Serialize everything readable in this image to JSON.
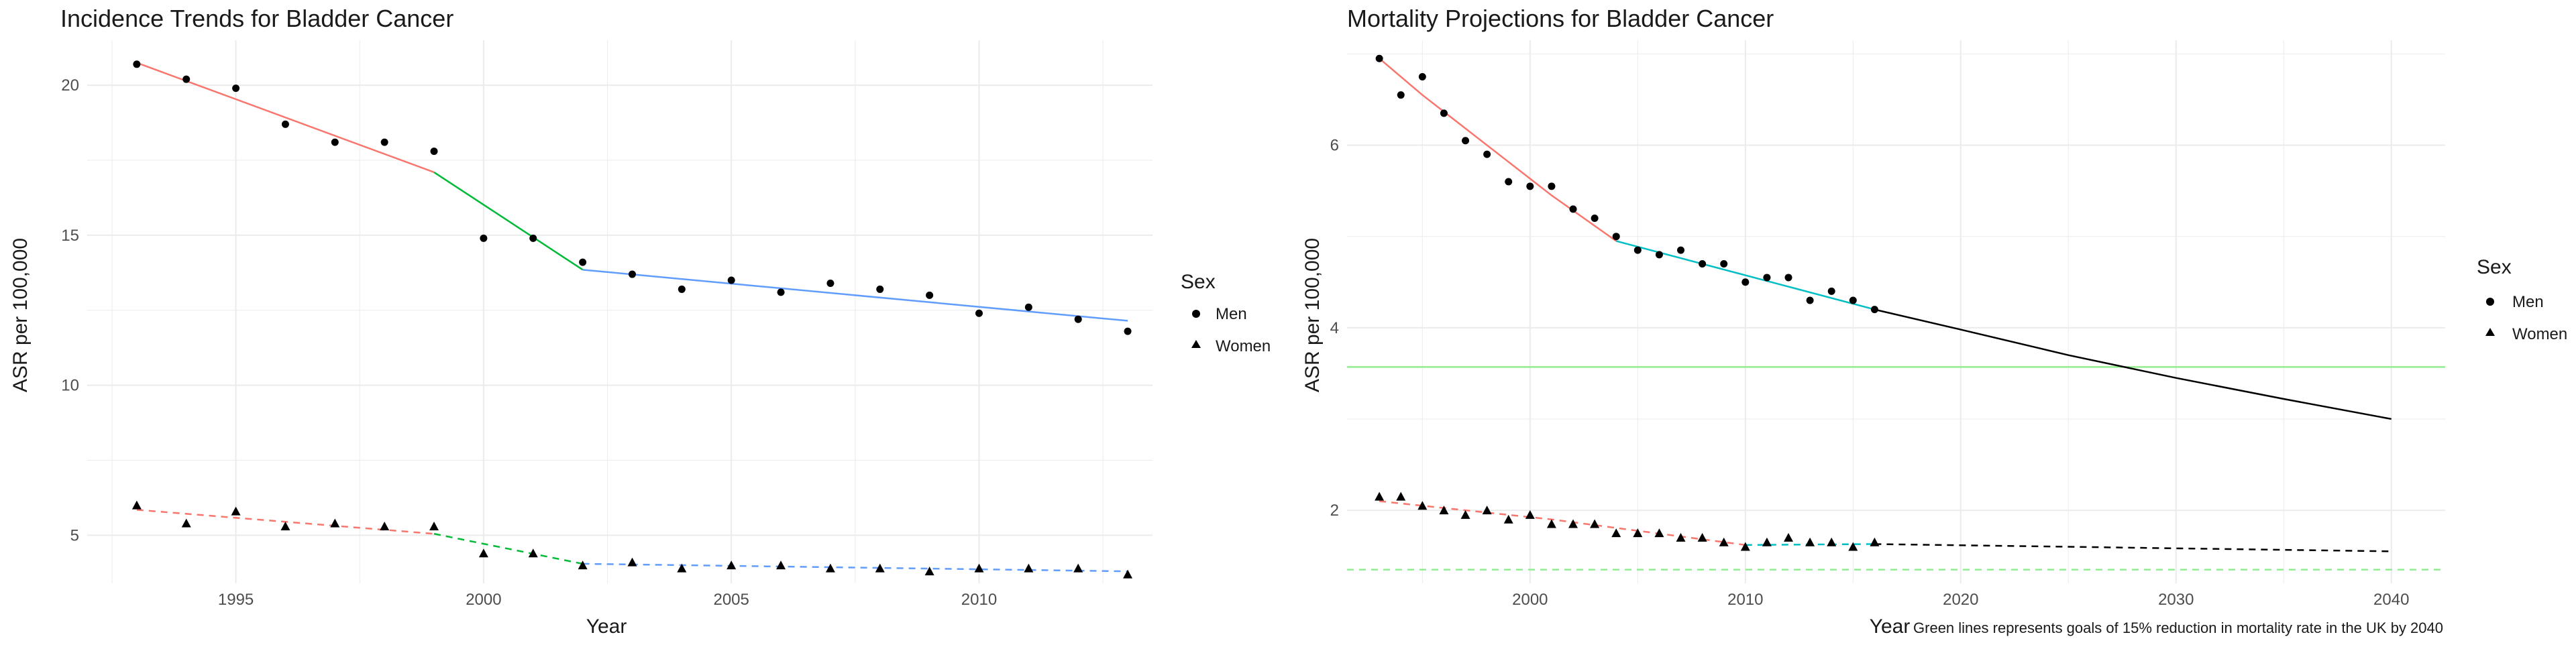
{
  "colors": {
    "seg1": "#F8766D",
    "seg2": "#00BA38",
    "seg3": "#619CFF",
    "seg_teal": "#00BFC4",
    "projection": "#000000",
    "goal": "#90EE90",
    "points": "#000000",
    "grid": "#ebebeb"
  },
  "chart_data": [
    {
      "type": "scatter",
      "title": "Incidence Trends for Bladder Cancer",
      "xlabel": "Year",
      "ylabel": "ASR per 100,000",
      "xlim": [
        1992,
        2013.5
      ],
      "ylim": [
        3.4,
        21.5
      ],
      "x_ticks": [
        1995,
        2000,
        2005,
        2010
      ],
      "y_ticks": [
        5,
        10,
        15,
        20
      ],
      "grid": true,
      "legend": {
        "title": "Sex",
        "position": "right",
        "entries": [
          "Men",
          "Women"
        ]
      },
      "series": [
        {
          "name": "Men",
          "marker": "circle",
          "x": [
            1993,
            1994,
            1995,
            1996,
            1997,
            1998,
            1999,
            2000,
            2001,
            2002,
            2003,
            2004,
            2005,
            2006,
            2007,
            2008,
            2009,
            2010,
            2011,
            2012,
            2013
          ],
          "y": [
            20.7,
            20.2,
            19.9,
            18.7,
            18.1,
            18.1,
            17.8,
            14.9,
            14.9,
            14.1,
            13.7,
            13.2,
            13.5,
            13.1,
            13.4,
            13.2,
            13.0,
            12.4,
            12.6,
            12.2,
            11.8
          ]
        },
        {
          "name": "Women",
          "marker": "triangle",
          "x": [
            1993,
            1994,
            1995,
            1996,
            1997,
            1998,
            1999,
            2000,
            2001,
            2002,
            2003,
            2004,
            2005,
            2006,
            2007,
            2008,
            2009,
            2010,
            2011,
            2012,
            2013
          ],
          "y": [
            6.0,
            5.4,
            5.8,
            5.3,
            5.4,
            5.3,
            5.3,
            4.4,
            4.4,
            4.0,
            4.1,
            3.9,
            4.0,
            4.0,
            3.9,
            3.9,
            3.8,
            3.9,
            3.9,
            3.9,
            3.7
          ]
        }
      ],
      "trend_lines": [
        {
          "sex": "Men",
          "style": "solid",
          "color_key": "seg1",
          "x": [
            1993,
            1999
          ],
          "y": [
            20.75,
            17.1
          ]
        },
        {
          "sex": "Men",
          "style": "solid",
          "color_key": "seg2",
          "x": [
            1999,
            2002
          ],
          "y": [
            17.1,
            13.85
          ]
        },
        {
          "sex": "Men",
          "style": "solid",
          "color_key": "seg3",
          "x": [
            2002,
            2013
          ],
          "y": [
            13.85,
            12.15
          ]
        },
        {
          "sex": "Women",
          "style": "dashed",
          "color_key": "seg1",
          "x": [
            1993,
            1999
          ],
          "y": [
            5.85,
            5.05
          ]
        },
        {
          "sex": "Women",
          "style": "dashed",
          "color_key": "seg2",
          "x": [
            1999,
            2002
          ],
          "y": [
            5.05,
            4.05
          ]
        },
        {
          "sex": "Women",
          "style": "dashed",
          "color_key": "seg3",
          "x": [
            2002,
            2013
          ],
          "y": [
            4.05,
            3.8
          ]
        }
      ],
      "hlines": []
    },
    {
      "type": "scatter",
      "title": "Mortality Projections for Bladder Cancer",
      "xlabel": "Year",
      "ylabel": "ASR per 100,000",
      "xlim": [
        1991.5,
        2042.5
      ],
      "ylim": [
        1.2,
        7.15
      ],
      "x_ticks": [
        2000,
        2010,
        2020,
        2030,
        2040
      ],
      "y_ticks": [
        2,
        4,
        6
      ],
      "grid": true,
      "legend": {
        "title": "Sex",
        "position": "right",
        "entries": [
          "Men",
          "Women"
        ]
      },
      "caption": "Green lines represents goals of 15% reduction in mortality rate in the UK by 2040",
      "series": [
        {
          "name": "Men",
          "marker": "circle",
          "x": [
            1993,
            1994,
            1995,
            1996,
            1997,
            1998,
            1999,
            2000,
            2001,
            2002,
            2003,
            2004,
            2005,
            2006,
            2007,
            2008,
            2009,
            2010,
            2011,
            2012,
            2013,
            2014,
            2015,
            2016
          ],
          "y": [
            6.95,
            6.55,
            6.75,
            6.35,
            6.05,
            5.9,
            5.6,
            5.55,
            5.55,
            5.3,
            5.2,
            5.0,
            4.85,
            4.8,
            4.85,
            4.7,
            4.7,
            4.5,
            4.55,
            4.55,
            4.3,
            4.4,
            4.3,
            4.2
          ]
        },
        {
          "name": "Women",
          "marker": "triangle",
          "x": [
            1993,
            1994,
            1995,
            1996,
            1997,
            1998,
            1999,
            2000,
            2001,
            2002,
            2003,
            2004,
            2005,
            2006,
            2007,
            2008,
            2009,
            2010,
            2011,
            2012,
            2013,
            2014,
            2015,
            2016
          ],
          "y": [
            2.15,
            2.15,
            2.05,
            2.0,
            1.95,
            2.0,
            1.9,
            1.95,
            1.85,
            1.85,
            1.85,
            1.75,
            1.75,
            1.75,
            1.7,
            1.7,
            1.65,
            1.6,
            1.65,
            1.7,
            1.65,
            1.65,
            1.6,
            1.65
          ]
        }
      ],
      "trend_lines": [
        {
          "sex": "Men",
          "style": "solid",
          "color_key": "seg1",
          "x": [
            1993,
            1995,
            1998,
            2001,
            2004
          ],
          "y": [
            6.95,
            6.55,
            6.0,
            5.45,
            4.95
          ]
        },
        {
          "sex": "Men",
          "style": "solid",
          "color_key": "seg_teal",
          "x": [
            2004,
            2008,
            2012,
            2016
          ],
          "y": [
            4.95,
            4.7,
            4.45,
            4.2
          ]
        },
        {
          "sex": "Men",
          "style": "solid",
          "color_key": "projection",
          "x": [
            2016,
            2020,
            2025,
            2030,
            2035,
            2040
          ],
          "y": [
            4.2,
            3.98,
            3.7,
            3.45,
            3.22,
            3.0
          ]
        },
        {
          "sex": "Women",
          "style": "dashed",
          "color_key": "seg1",
          "x": [
            1993,
            2001,
            2010
          ],
          "y": [
            2.1,
            1.9,
            1.62
          ]
        },
        {
          "sex": "Women",
          "style": "dashed",
          "color_key": "seg_teal",
          "x": [
            2010,
            2016
          ],
          "y": [
            1.62,
            1.63
          ]
        },
        {
          "sex": "Women",
          "style": "dashed",
          "color_key": "projection",
          "x": [
            2016,
            2025,
            2040
          ],
          "y": [
            1.63,
            1.6,
            1.55
          ]
        }
      ],
      "hlines": [
        {
          "y": 3.57,
          "style": "solid",
          "color_key": "goal"
        },
        {
          "y": 1.35,
          "style": "dashed",
          "color_key": "goal"
        }
      ]
    }
  ]
}
